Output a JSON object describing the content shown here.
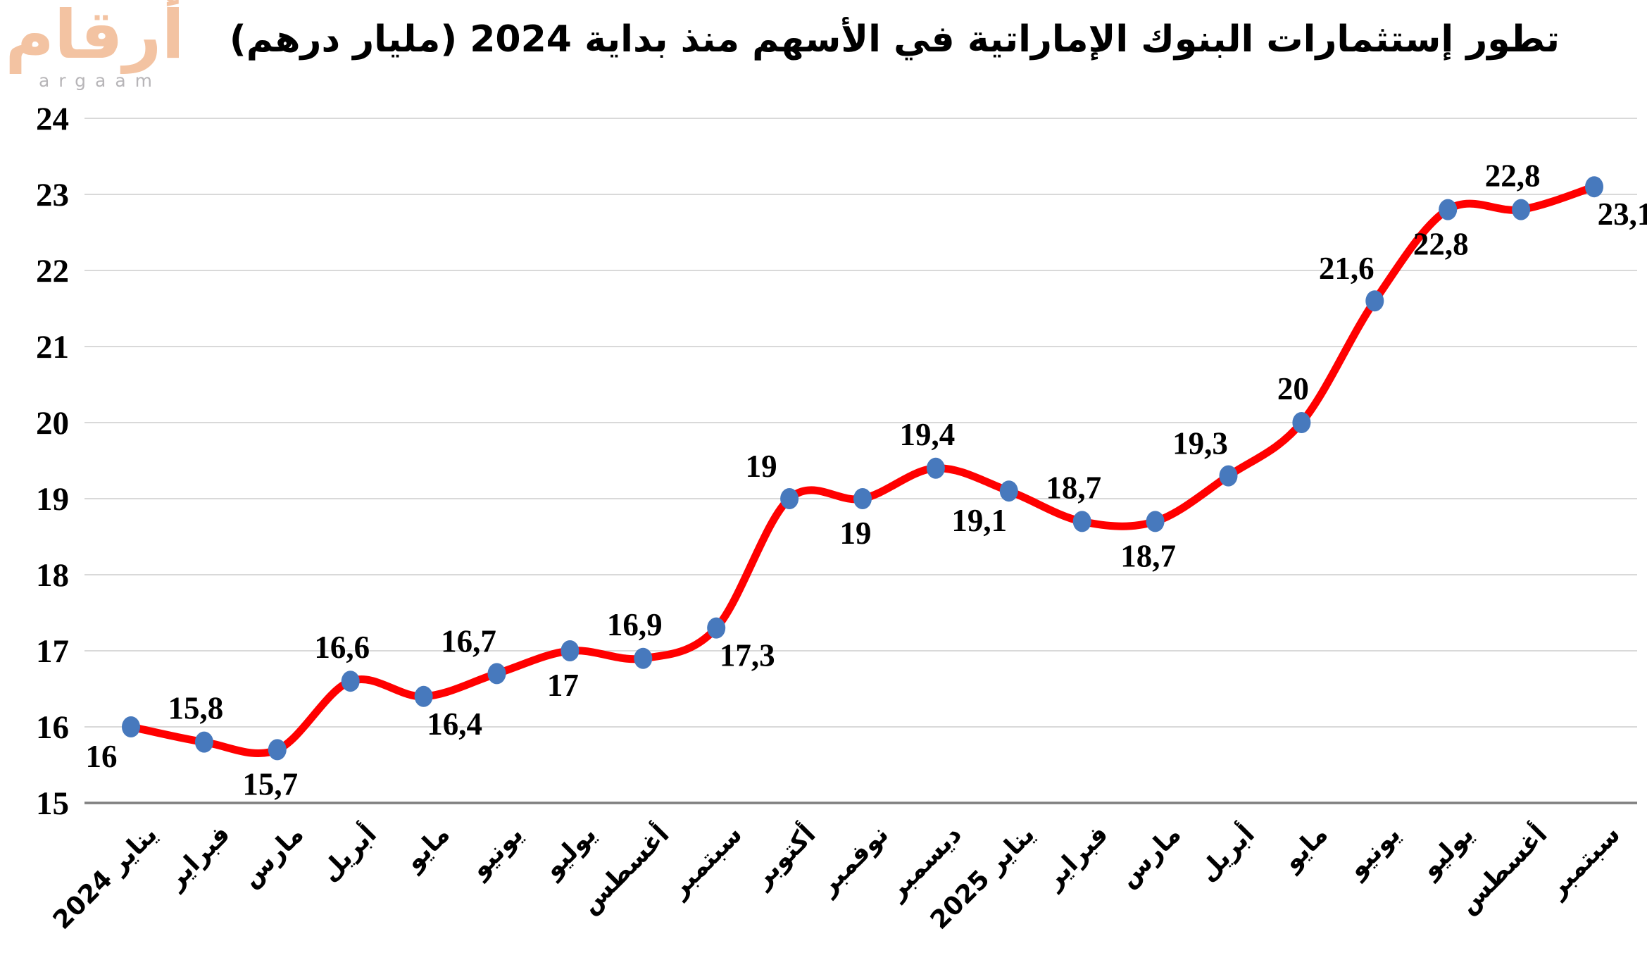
{
  "logo": {
    "arabic": "أرقام",
    "latin": "argaam"
  },
  "title": "تطور إستثمارات البنوك الإماراتية في الأسهم  منذ بداية 2024 (مليار درهم)",
  "chart_data": {
    "type": "line",
    "title": "تطور إستثمارات البنوك الإماراتية في الأسهم  منذ بداية 2024 (مليار درهم)",
    "categories": [
      "يناير 2024",
      "فبراير",
      "مارس",
      "أبريل",
      "مايو",
      "يونيو",
      "يوليو",
      "أغسطس",
      "سبتمبر",
      "أكتوبر",
      "نوفمبر",
      "ديسمبر",
      "يناير 2025",
      "فبراير",
      "مارس",
      "أبريل",
      "مايو",
      "يونيو",
      "يوليو",
      "أغسطس",
      "سبتمبر"
    ],
    "values": [
      16,
      15.8,
      15.7,
      16.6,
      16.4,
      16.7,
      17,
      16.9,
      17.3,
      19,
      19,
      19.4,
      19.1,
      18.7,
      18.7,
      19.3,
      20,
      21.6,
      22.8,
      22.8,
      23.1
    ],
    "point_labels": [
      "16",
      "15,8",
      "15,7",
      "16,6",
      "16,4",
      "16,7",
      "17",
      "16,9",
      "17,3",
      "19",
      "19",
      "19,4",
      "19,1",
      "18,7",
      "18,7",
      "19,3",
      "20",
      "21,6",
      "22,8",
      "22,8",
      "23,1"
    ],
    "label_placement": [
      "below-left",
      "above",
      "below",
      "above",
      "below-right",
      "above-left",
      "below",
      "above",
      "below-right",
      "above-left",
      "below",
      "above",
      "below-left",
      "above",
      "below",
      "above-left",
      "above",
      "above-left",
      "below",
      "above",
      "below-right"
    ],
    "xlabel": "",
    "ylabel": "",
    "ylim": [
      15,
      24
    ],
    "yticks": [
      15,
      16,
      17,
      18,
      19,
      20,
      21,
      22,
      23,
      24
    ],
    "grid": "horizontal",
    "legend": "none",
    "smooth_line": true,
    "decimal_separator": ",",
    "colors": {
      "line": "#ff0000",
      "marker": "#4779bd",
      "gridline": "#d9d9d9",
      "axis_line": "#7f7f7f",
      "text": "#000000",
      "logo_arabic": "#f3c3a2",
      "logo_latin": "#b7b5b8"
    }
  }
}
